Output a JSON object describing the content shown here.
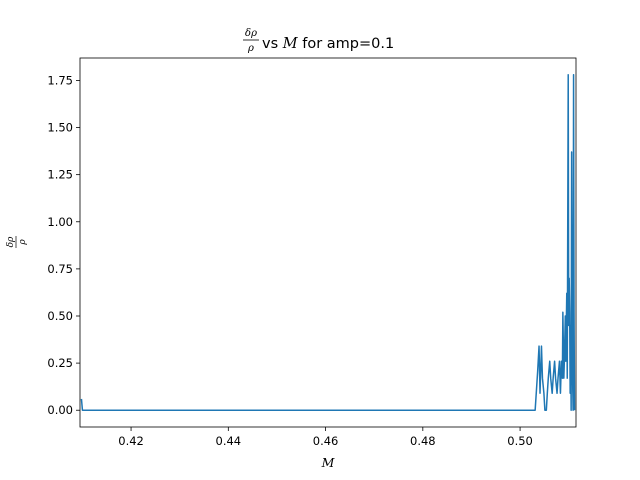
{
  "chart_data": {
    "type": "line",
    "title": {
      "frac_num": "δρ",
      "frac_den": "ρ",
      "vs": " vs ",
      "var": "M",
      "suffix": " for amp=0.1"
    },
    "xlabel": "M",
    "ylabel": {
      "frac_num": "δρ",
      "frac_den": "ρ"
    },
    "xlim": [
      0.4095,
      0.5115
    ],
    "ylim": [
      -0.089,
      1.869
    ],
    "xticks": [
      0.42,
      0.44,
      0.46,
      0.48,
      0.5
    ],
    "xtick_labels": [
      "0.42",
      "0.44",
      "0.46",
      "0.48",
      "0.50"
    ],
    "yticks": [
      0.0,
      0.25,
      0.5,
      0.75,
      1.0,
      1.25,
      1.5,
      1.75
    ],
    "ytick_labels": [
      "0.00",
      "0.25",
      "0.50",
      "0.75",
      "1.00",
      "1.25",
      "1.50",
      "1.75"
    ],
    "grid": false,
    "legend": "none",
    "series": [
      {
        "color": "#1f77b4",
        "x": [
          0.4098,
          0.41,
          0.42,
          0.44,
          0.46,
          0.48,
          0.5,
          0.5031,
          0.5036,
          0.5039,
          0.5041,
          0.5044,
          0.5046,
          0.5049,
          0.5051,
          0.5054,
          0.5056,
          0.5058,
          0.5061,
          0.5063,
          0.5066,
          0.5068,
          0.5071,
          0.5073,
          0.5076,
          0.5078,
          0.5081,
          0.5083,
          0.5085,
          0.5087,
          0.5088,
          0.509,
          0.5091,
          0.5093,
          0.5094,
          0.5096,
          0.5097,
          0.5099,
          0.51,
          0.5101,
          0.5102,
          0.5103,
          0.5104,
          0.5105,
          0.5106,
          0.5107,
          0.5108,
          0.5109,
          0.511,
          0.5111,
          0.5112
        ],
        "y": [
          0.06,
          0.0,
          0.0,
          0.0,
          0.0,
          0.0,
          0.0,
          0.0,
          0.2,
          0.34,
          0.09,
          0.34,
          0.17,
          0.09,
          0.0,
          0.0,
          0.09,
          0.17,
          0.26,
          0.17,
          0.09,
          0.17,
          0.26,
          0.17,
          0.09,
          0.17,
          0.26,
          0.09,
          0.26,
          0.17,
          0.52,
          0.17,
          0.26,
          0.5,
          0.26,
          0.62,
          0.17,
          1.78,
          0.45,
          0.7,
          0.52,
          0.09,
          0.45,
          0.0,
          1.37,
          0.52,
          0.17,
          0.0,
          1.78,
          0.52,
          0.0
        ]
      }
    ]
  }
}
